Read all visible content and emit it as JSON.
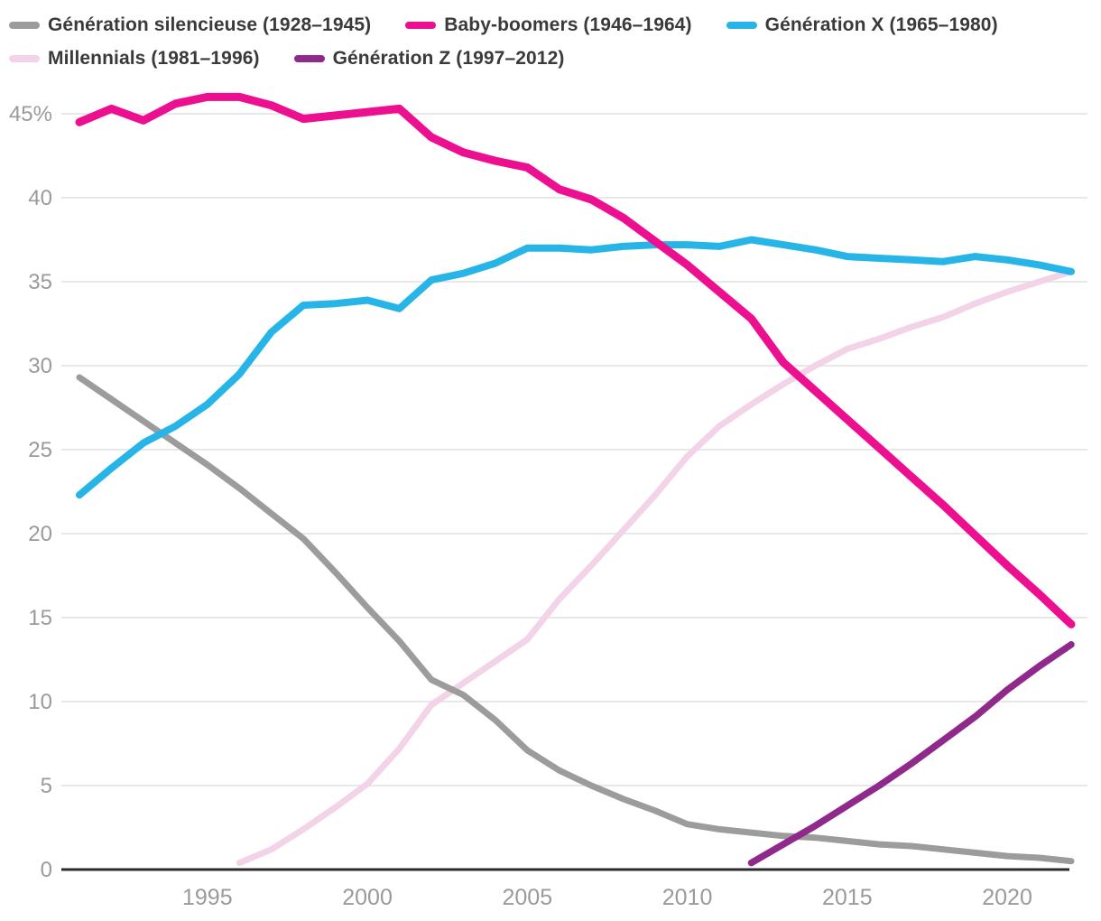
{
  "legend": {
    "items": [
      {
        "label": "Génération silencieuse (1928–1945)"
      },
      {
        "label": "Baby-boomers (1946–1964)"
      },
      {
        "label": "Génération X (1965–1980)"
      },
      {
        "label": "Millennials (1981–1996)"
      },
      {
        "label": "Génération Z (1997–2012)"
      }
    ]
  },
  "chart_data": {
    "type": "line",
    "title": "",
    "xlabel": "",
    "ylabel": "",
    "unit": "%",
    "x_start_year": 1991,
    "x_end_year": 2022,
    "xticks": [
      1995,
      2000,
      2005,
      2010,
      2015,
      2020
    ],
    "yticks": [
      {
        "value": 0,
        "label": "0"
      },
      {
        "value": 5,
        "label": "5"
      },
      {
        "value": 10,
        "label": "10"
      },
      {
        "value": 15,
        "label": "15"
      },
      {
        "value": 20,
        "label": "20"
      },
      {
        "value": 25,
        "label": "25"
      },
      {
        "value": 30,
        "label": "30"
      },
      {
        "value": 35,
        "label": "35"
      },
      {
        "value": 40,
        "label": "40"
      },
      {
        "value": 45,
        "label": "45%"
      }
    ],
    "ylim": [
      0,
      47.5
    ],
    "grid": true,
    "legend_position": "top-left",
    "colors": {
      "grid_line": "#e8e8e8",
      "axis_line": "#2b2b2b",
      "tick_label": "#9a9a9a",
      "legend_text": "#3a3a3a",
      "background": "#ffffff"
    },
    "series": [
      {
        "name": "Génération silencieuse (1928–1945)",
        "color": "#9c9c9c",
        "start_year": 1991,
        "values": [
          29.3,
          28.0,
          26.7,
          25.4,
          24.1,
          22.7,
          21.2,
          19.7,
          17.7,
          15.6,
          13.6,
          11.3,
          10.4,
          8.9,
          7.1,
          5.9,
          5.0,
          4.2,
          3.5,
          2.7,
          2.4,
          2.2,
          2.0,
          1.9,
          1.7,
          1.5,
          1.4,
          1.2,
          1.0,
          0.8,
          0.7,
          0.5
        ]
      },
      {
        "name": "Baby-boomers (1946–1964)",
        "color": "#ec0f8f",
        "start_year": 1991,
        "values": [
          44.5,
          45.3,
          44.6,
          45.6,
          46.0,
          46.0,
          45.5,
          44.7,
          44.9,
          45.1,
          45.3,
          43.6,
          42.7,
          42.2,
          41.8,
          40.5,
          39.9,
          38.8,
          37.4,
          36.0,
          34.4,
          32.8,
          30.2,
          28.5,
          26.8,
          25.1,
          23.4,
          21.7,
          19.9,
          18.1,
          16.4,
          14.6
        ]
      },
      {
        "name": "Génération X (1965–1980)",
        "color": "#27b5e8",
        "start_year": 1991,
        "values": [
          22.3,
          23.9,
          25.4,
          26.4,
          27.7,
          29.5,
          32.0,
          33.6,
          33.7,
          33.9,
          33.4,
          35.1,
          35.5,
          36.1,
          37.0,
          37.0,
          36.9,
          37.1,
          37.2,
          37.2,
          37.1,
          37.5,
          37.2,
          36.9,
          36.5,
          36.4,
          36.3,
          36.2,
          36.5,
          36.3,
          36.0,
          35.6
        ]
      },
      {
        "name": "Millennials (1981–1996)",
        "color": "#f2d3e8",
        "start_year": 1996,
        "values": [
          0.4,
          1.2,
          2.4,
          3.7,
          5.1,
          7.2,
          9.8,
          11.1,
          12.4,
          13.7,
          16.1,
          18.1,
          20.2,
          22.3,
          24.6,
          26.4,
          27.7,
          28.9,
          30.0,
          31.0,
          31.6,
          32.3,
          32.9,
          33.7,
          34.4,
          35.0,
          35.6
        ]
      },
      {
        "name": "Génération Z (1997–2012)",
        "color": "#8f2a8c",
        "start_year": 2012,
        "values": [
          0.4,
          1.5,
          2.6,
          3.8,
          5.0,
          6.3,
          7.7,
          9.1,
          10.7,
          12.1,
          13.4
        ]
      }
    ]
  }
}
